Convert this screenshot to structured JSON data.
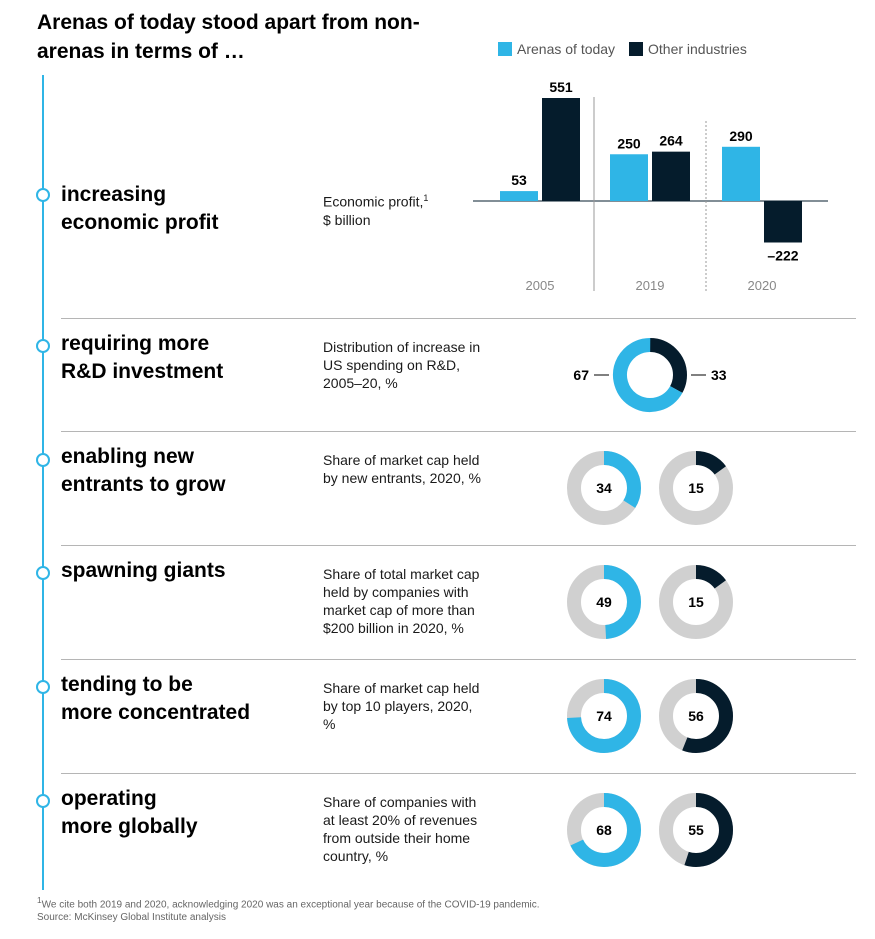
{
  "title": "Arenas of today stood apart from non-arenas in terms of …",
  "legend": {
    "arenas": "Arenas of today",
    "other": "Other industries"
  },
  "colors": {
    "arenas": "#2fb5e6",
    "other": "#051c2c",
    "track": "#d0d0d0"
  },
  "rows": [
    {
      "label_line1": "increasing",
      "label_line2": "economic profit",
      "metric": "Economic profit,",
      "metric_sup": "1",
      "metric_line2": "$ billion"
    },
    {
      "label_line1": "requiring more",
      "label_line2": "R&D investment",
      "metric": "Distribution of increase in US spending on R&D, 2005–20, %"
    },
    {
      "label_line1": "enabling new",
      "label_line2": "entrants to grow",
      "metric": "Share of market cap held by new entrants, 2020, %"
    },
    {
      "label_line1": "spawning giants",
      "label_line2": "",
      "metric": "Share of total market cap held by companies with market cap of more than $200 billion in 2020, %"
    },
    {
      "label_line1": "tending to be",
      "label_line2": "more concentrated",
      "metric": "Share of market cap held by top 10 players, 2020, %"
    },
    {
      "label_line1": "operating",
      "label_line2": "more globally",
      "metric": "Share of companies with at least 20% of revenues from outside their home country, %"
    }
  ],
  "chart_data": [
    {
      "type": "bar",
      "categories": [
        "2005",
        "2019",
        "2020"
      ],
      "series": [
        {
          "name": "Arenas of today",
          "values": [
            53,
            250,
            290
          ]
        },
        {
          "name": "Other industries",
          "values": [
            551,
            264,
            -222
          ]
        }
      ],
      "value_labels": {
        "arenas": [
          "53",
          "250",
          "290"
        ],
        "other": [
          "551",
          "264",
          "–222"
        ]
      },
      "ylabel": "Economic profit, $ billion"
    },
    {
      "type": "pie",
      "title": "Distribution of increase in US spending on R&D, 2005–20, %",
      "slices": [
        {
          "name": "Arenas of today",
          "value": 67
        },
        {
          "name": "Other industries",
          "value": 33
        }
      ]
    },
    {
      "type": "pie",
      "title": "Share of market cap held by new entrants, 2020, %",
      "values": {
        "arenas": 34,
        "other": 15
      }
    },
    {
      "type": "pie",
      "title": "Share of total market cap held by companies with market cap of more than $200 billion in 2020, %",
      "values": {
        "arenas": 49,
        "other": 15
      }
    },
    {
      "type": "pie",
      "title": "Share of market cap held by top 10 players, 2020, %",
      "values": {
        "arenas": 74,
        "other": 56
      }
    },
    {
      "type": "pie",
      "title": "Share of companies with at least 20% of revenues from outside their home country, %",
      "values": {
        "arenas": 68,
        "other": 55
      }
    }
  ],
  "footnote_line1": "We cite both 2019 and 2020, acknowledging 2020 was an exceptional year because of the COVID-19 pandemic.",
  "footnote_sup": "1",
  "footnote_line2": "Source: McKinsey Global Institute analysis"
}
